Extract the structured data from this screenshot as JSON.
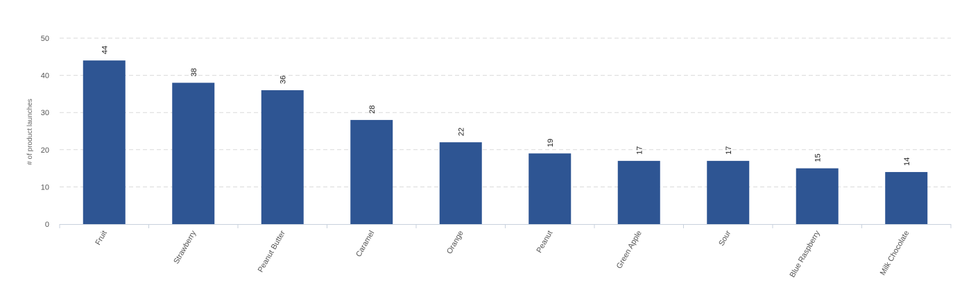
{
  "chart_data": {
    "type": "bar",
    "categories": [
      "Fruit",
      "Strawberry",
      "Peanut Butter",
      "Caramel",
      "Orange",
      "Peanut",
      "Green Apple",
      "Sour",
      "Blue Raspberry",
      "Milk Chocolate"
    ],
    "values": [
      44,
      38,
      36,
      28,
      22,
      19,
      17,
      17,
      15,
      14
    ],
    "data_labels": [
      "44",
      "38",
      "36",
      "28",
      "22",
      "19",
      "17",
      "17",
      "15",
      "14"
    ],
    "title": "",
    "xlabel": "",
    "ylabel": "# of product launches",
    "ylim": [
      0,
      50
    ],
    "yticks": [
      0,
      10,
      20,
      30,
      40,
      50
    ],
    "ytick_labels": [
      "0",
      "10",
      "20",
      "30",
      "40",
      "50"
    ],
    "grid": true,
    "legend": "none",
    "bar_color": "#2e5593"
  }
}
